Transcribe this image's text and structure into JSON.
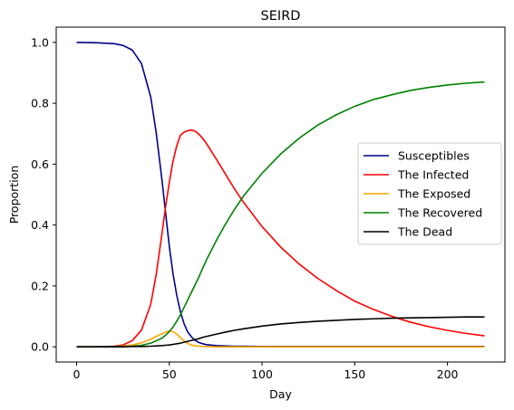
{
  "chart_data": {
    "type": "line",
    "title": "SEIRD",
    "xlabel": "Day",
    "ylabel": "Proportion",
    "xlim": [
      -11,
      231
    ],
    "ylim": [
      -0.05,
      1.05
    ],
    "xticks": [
      0,
      50,
      100,
      150,
      200
    ],
    "yticks": [
      0.0,
      0.2,
      0.4,
      0.6,
      0.8,
      1.0
    ],
    "xtick_labels": [
      "0",
      "50",
      "100",
      "150",
      "200"
    ],
    "ytick_labels": [
      "0.0",
      "0.2",
      "0.4",
      "0.6",
      "0.8",
      "1.0"
    ],
    "grid": false,
    "legend_position": "center-right",
    "x": [
      0,
      10,
      20,
      25,
      30,
      35,
      40,
      43,
      46,
      48,
      50,
      52,
      54,
      56,
      58,
      60,
      62,
      64,
      66,
      68,
      70,
      75,
      80,
      85,
      90,
      100,
      110,
      120,
      130,
      140,
      150,
      160,
      170,
      180,
      190,
      200,
      210,
      220
    ],
    "series": [
      {
        "name": "Susceptibles",
        "color": "#00008b",
        "values": [
          1.0,
          0.999,
          0.996,
          0.99,
          0.975,
          0.93,
          0.82,
          0.7,
          0.55,
          0.44,
          0.33,
          0.24,
          0.17,
          0.115,
          0.075,
          0.048,
          0.032,
          0.021,
          0.014,
          0.01,
          0.007,
          0.004,
          0.003,
          0.002,
          0.002,
          0.001,
          0.001,
          0.001,
          0.001,
          0.001,
          0.001,
          0.001,
          0.001,
          0.001,
          0.001,
          0.001,
          0.001,
          0.001
        ]
      },
      {
        "name": "The Infected",
        "color": "#ff0000",
        "values": [
          0.0,
          0.0,
          0.002,
          0.006,
          0.02,
          0.055,
          0.14,
          0.24,
          0.37,
          0.46,
          0.54,
          0.61,
          0.66,
          0.695,
          0.705,
          0.71,
          0.712,
          0.708,
          0.698,
          0.685,
          0.668,
          0.62,
          0.57,
          0.52,
          0.475,
          0.395,
          0.328,
          0.272,
          0.225,
          0.185,
          0.15,
          0.123,
          0.1,
          0.081,
          0.066,
          0.054,
          0.044,
          0.036
        ]
      },
      {
        "name": "The Exposed",
        "color": "#ffa500",
        "values": [
          0.0,
          0.0,
          0.001,
          0.003,
          0.006,
          0.013,
          0.025,
          0.034,
          0.043,
          0.048,
          0.052,
          0.05,
          0.042,
          0.03,
          0.019,
          0.011,
          0.006,
          0.003,
          0.002,
          0.001,
          0.001,
          0.0,
          0.0,
          0.0,
          0.0,
          0.0,
          0.0,
          0.0,
          0.0,
          0.0,
          0.0,
          0.0,
          0.0,
          0.0,
          0.0,
          0.0,
          0.0,
          0.0
        ]
      },
      {
        "name": "The Recovered",
        "color": "#008000",
        "values": [
          0.0,
          0.0,
          0.001,
          0.001,
          0.002,
          0.005,
          0.012,
          0.02,
          0.028,
          0.038,
          0.05,
          0.065,
          0.084,
          0.105,
          0.13,
          0.155,
          0.18,
          0.205,
          0.23,
          0.258,
          0.285,
          0.345,
          0.4,
          0.45,
          0.495,
          0.57,
          0.633,
          0.685,
          0.728,
          0.762,
          0.79,
          0.812,
          0.828,
          0.842,
          0.852,
          0.86,
          0.866,
          0.87
        ]
      },
      {
        "name": "The Dead",
        "color": "#000000",
        "values": [
          0.0,
          0.0,
          0.0,
          0.0,
          0.001,
          0.001,
          0.002,
          0.003,
          0.004,
          0.005,
          0.006,
          0.008,
          0.01,
          0.012,
          0.015,
          0.018,
          0.021,
          0.024,
          0.027,
          0.031,
          0.034,
          0.041,
          0.048,
          0.054,
          0.059,
          0.068,
          0.075,
          0.08,
          0.084,
          0.087,
          0.09,
          0.092,
          0.094,
          0.095,
          0.096,
          0.097,
          0.098,
          0.098
        ]
      }
    ]
  }
}
